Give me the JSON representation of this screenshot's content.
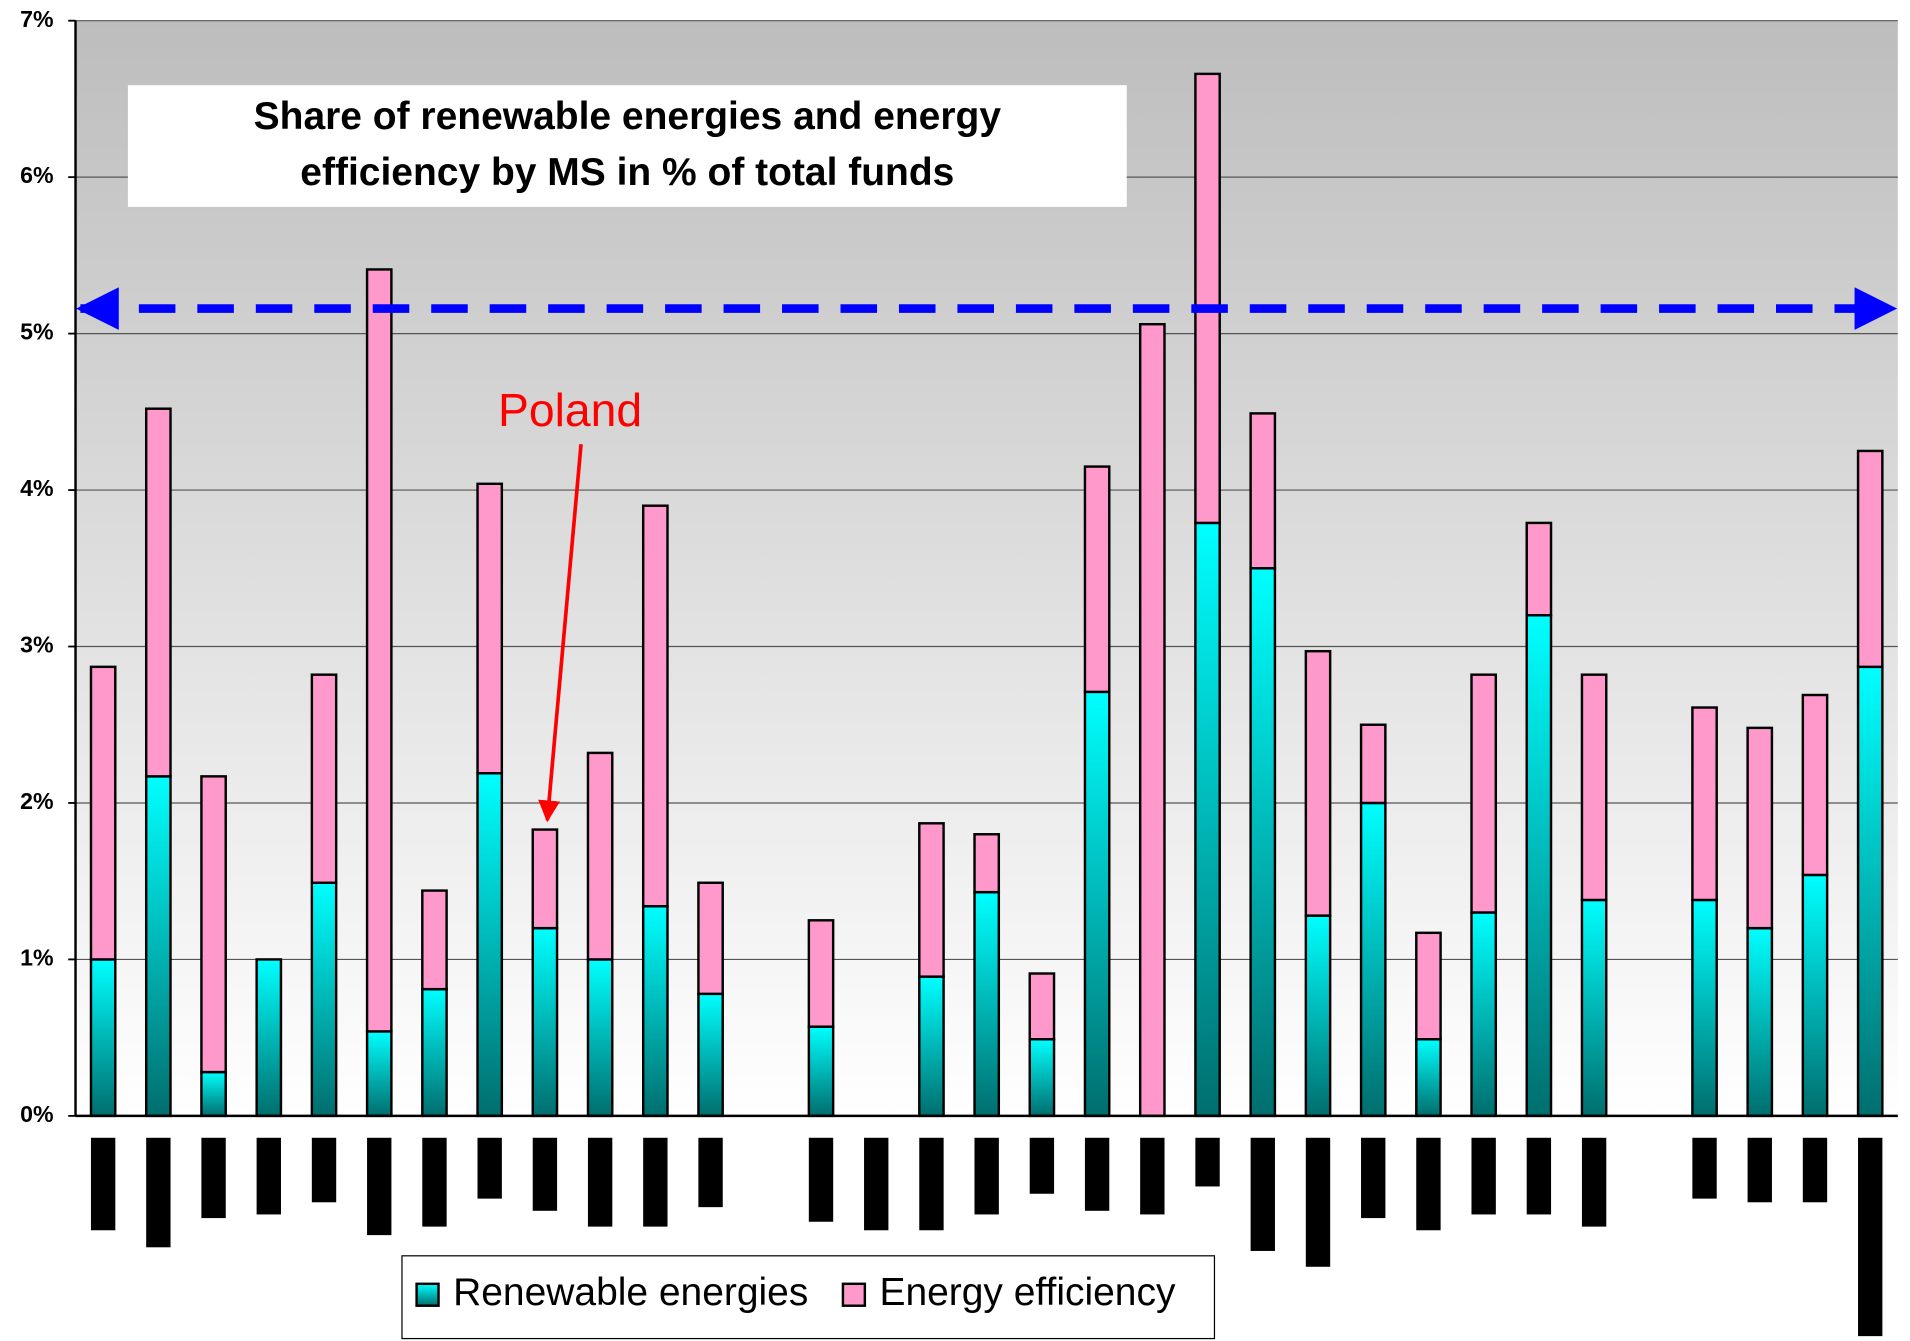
{
  "chart_data": {
    "type": "stacked_bar",
    "title": "Share of renewable energies and energy efficiency by MS in % of total funds",
    "categories": [
      null,
      null,
      null,
      null,
      null,
      null,
      null,
      null,
      null,
      null,
      null,
      null,
      null,
      null,
      null,
      null,
      null,
      null,
      null,
      null,
      null,
      null,
      null,
      null,
      null,
      null,
      null,
      null,
      null,
      null,
      null,
      null,
      null
    ],
    "series": [
      {
        "name": "Renewable energies",
        "color": "#00ffff",
        "values": [
          1.0,
          2.17,
          0.28,
          1.0,
          1.49,
          0.54,
          0.81,
          2.19,
          1.2,
          1.0,
          1.34,
          0.78,
          null,
          0.57,
          null,
          0.89,
          1.43,
          0.49,
          2.71,
          0,
          3.79,
          3.5,
          1.28,
          2.0,
          0.49,
          1.3,
          3.2,
          1.38,
          null,
          1.38,
          1.2,
          1.54,
          2.87
        ]
      },
      {
        "name": "Energy efficiency",
        "color": "#ff99cc",
        "values": [
          1.87,
          2.35,
          1.89,
          0,
          1.33,
          4.87,
          0.63,
          1.85,
          0.63,
          1.32,
          2.56,
          0.71,
          null,
          0.68,
          null,
          0.98,
          0.37,
          0.42,
          1.44,
          5.06,
          2.87,
          0.99,
          1.69,
          0.5,
          0.68,
          1.52,
          0.59,
          1.44,
          null,
          1.23,
          1.28,
          1.15,
          1.38
        ]
      }
    ],
    "ylim": [
      0,
      7
    ],
    "yticks": [
      {
        "value": 0,
        "label": "0%"
      },
      {
        "value": 1,
        "label": "1%"
      },
      {
        "value": 2,
        "label": "2%"
      },
      {
        "value": 3,
        "label": "3%"
      },
      {
        "value": 4,
        "label": "4%"
      },
      {
        "value": 5,
        "label": "5%"
      },
      {
        "value": 6,
        "label": "6%"
      },
      {
        "value": 7,
        "label": "7%"
      }
    ],
    "grid": true,
    "reference_line": 5.16,
    "annotation": "Poland"
  }
}
